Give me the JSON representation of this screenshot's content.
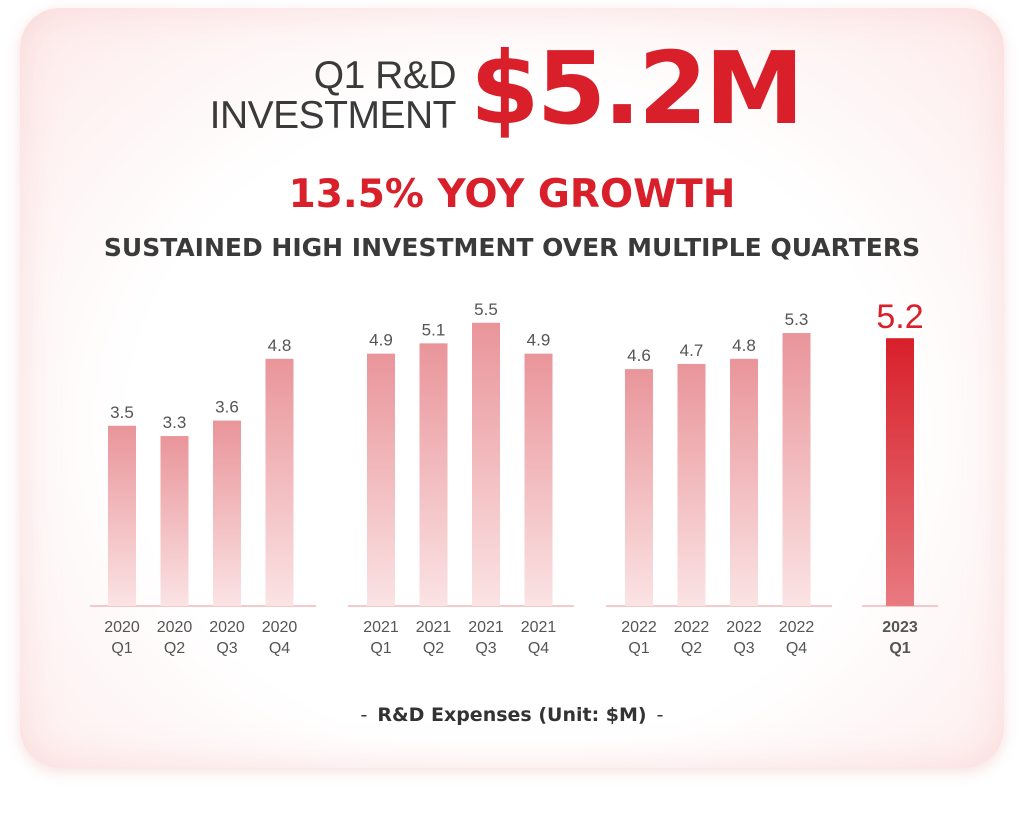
{
  "header": {
    "label_line1": "Q1 R&D",
    "label_line2": "INVESTMENT",
    "value": "$5.2M",
    "growth": "13.5% YOY GROWTH",
    "subtitle": "SUSTAINED HIGH INVESTMENT OVER MULTIPLE QUARTERS"
  },
  "footer": {
    "caption": "R&D Expenses (Unit: $M)"
  },
  "colors": {
    "accent": "#d81f2a",
    "bar_top": "#e9959a",
    "bar_bottom": "#fbe3e4",
    "highlight_top": "#d81f2a",
    "highlight_bottom": "#e87a80",
    "text": "#3a3a3a",
    "baseline": "#f0b8bb"
  },
  "chart_data": {
    "type": "bar",
    "title": "",
    "xlabel": "R&D Expenses (Unit: $M)",
    "ylabel": "",
    "ylim": [
      0,
      5.5
    ],
    "highlight_index": 12,
    "groups": [
      {
        "year": "2020",
        "categories": [
          "2020 Q1",
          "2020 Q2",
          "2020 Q3",
          "2020 Q4"
        ],
        "values": [
          3.5,
          3.3,
          3.6,
          4.8
        ]
      },
      {
        "year": "2021",
        "categories": [
          "2021 Q1",
          "2021 Q2",
          "2021 Q3",
          "2021 Q4"
        ],
        "values": [
          4.9,
          5.1,
          5.5,
          4.9
        ]
      },
      {
        "year": "2022",
        "categories": [
          "2022 Q1",
          "2022 Q2",
          "2022 Q3",
          "2022 Q4"
        ],
        "values": [
          4.6,
          4.7,
          4.8,
          5.3
        ]
      },
      {
        "year": "2023",
        "categories": [
          "2023 Q1"
        ],
        "values": [
          5.2
        ]
      }
    ]
  }
}
